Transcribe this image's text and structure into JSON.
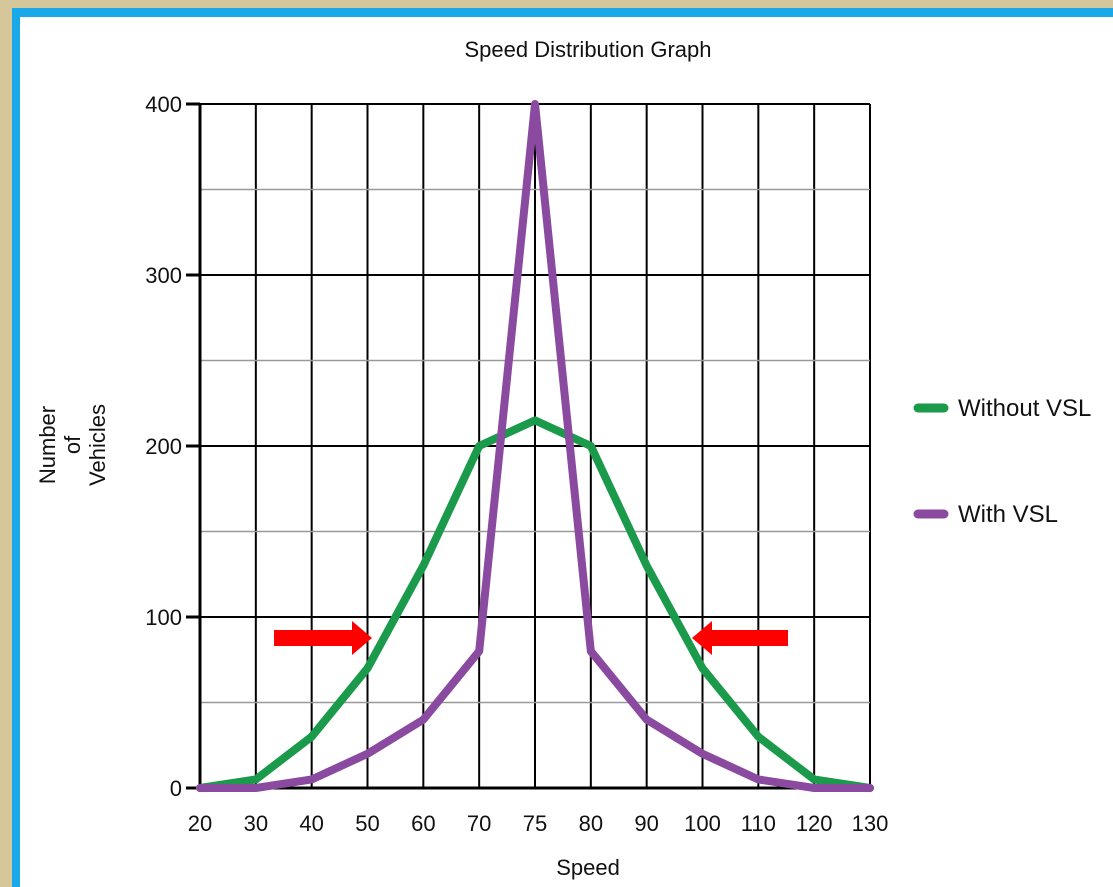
{
  "colors": {
    "background": "#d6c79b",
    "frame": "#1aa9e8",
    "panel": "#ffffff",
    "without_vsl": "#1a9a4a",
    "with_vsl": "#8a4aa0",
    "arrow": "#ff0000"
  },
  "chart_data": {
    "type": "line",
    "title": "Speed Distribution Graph",
    "xlabel": "Speed",
    "ylabel_lines": [
      "Number",
      "of",
      "Vehicles"
    ],
    "x": [
      20,
      30,
      40,
      50,
      60,
      70,
      75,
      80,
      90,
      100,
      110,
      120,
      130
    ],
    "x_tick_labels": [
      "20",
      "30",
      "40",
      "50",
      "60",
      "70",
      "75",
      "80",
      "90",
      "100",
      "110",
      "120",
      "130"
    ],
    "y_tick_labels": [
      "0",
      "100",
      "200",
      "300",
      "400"
    ],
    "y_ticks": [
      0,
      100,
      200,
      300,
      400
    ],
    "ylim": [
      0,
      400
    ],
    "grid": true,
    "legend_position": "right",
    "series": [
      {
        "name": "Without VSL",
        "values": [
          0,
          5,
          30,
          70,
          130,
          200,
          215,
          200,
          130,
          70,
          30,
          5,
          0
        ]
      },
      {
        "name": "With VSL",
        "values": [
          0,
          0,
          5,
          20,
          40,
          80,
          400,
          80,
          40,
          20,
          5,
          0,
          0
        ]
      }
    ],
    "annotations": [
      {
        "type": "arrow",
        "direction": "right",
        "color": "#ff0000"
      },
      {
        "type": "arrow",
        "direction": "left",
        "color": "#ff0000"
      }
    ]
  }
}
